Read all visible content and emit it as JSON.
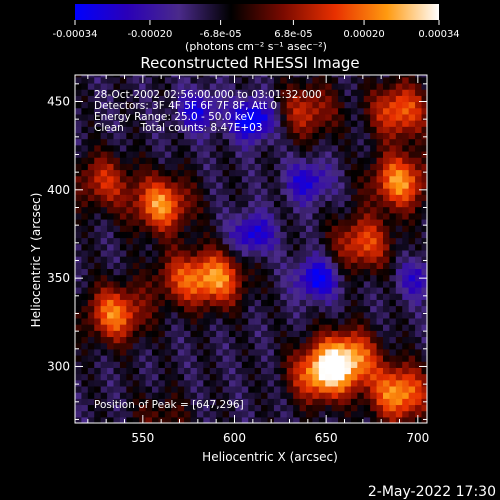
{
  "chart_data": {
    "type": "heatmap",
    "title": "Reconstructed RHESSI Image",
    "xlabel": "Heliocentric X (arcsec)",
    "ylabel": "Heliocentric Y (arcsec)",
    "xlim": [
      513,
      705
    ],
    "ylim": [
      268,
      465
    ],
    "xticks": [
      550,
      600,
      650,
      700
    ],
    "yticks": [
      300,
      350,
      400,
      450
    ],
    "grid": false,
    "colorbar": {
      "range": [
        -0.00034,
        0.00034
      ],
      "tick_values": [
        -0.00034,
        -0.0002,
        -6.8e-05,
        6.8e-05,
        0.0002,
        0.00034
      ],
      "tick_labels": [
        "-0.00034",
        "-0.00020",
        "-6.8e-05",
        "6.8e-05",
        "0.00020",
        "0.00034"
      ],
      "units": "(photons cm⁻² s⁻¹ asec⁻²)",
      "colormap": [
        "#0000ff",
        "#2a00b8",
        "#4a2a8a",
        "#000000",
        "#7a0a00",
        "#e83000",
        "#ff9a10",
        "#ffffff"
      ]
    },
    "info_lines": [
      "28-Oct-2002 02:56:00.000 to 03:01:32.000",
      "Detectors: 3F 4F 5F 6F 7F 8F, Att 0",
      "Energy Range: 25.0 - 50.0 keV",
      "Clean     Total counts: 8.47E+03"
    ],
    "peak_text": "Position of Peak = [647,296]",
    "peak_position": [
      647,
      296
    ],
    "hotspots": [
      {
        "x": 560,
        "y": 392,
        "peak": 0.00032
      },
      {
        "x": 590,
        "y": 350,
        "peak": 0.0003
      },
      {
        "x": 570,
        "y": 350,
        "peak": 0.00018
      },
      {
        "x": 535,
        "y": 330,
        "peak": 0.0003
      },
      {
        "x": 528,
        "y": 405,
        "peak": 0.0002
      },
      {
        "x": 690,
        "y": 405,
        "peak": 0.00032
      },
      {
        "x": 690,
        "y": 445,
        "peak": 0.00028
      },
      {
        "x": 670,
        "y": 370,
        "peak": 0.00025
      },
      {
        "x": 662,
        "y": 305,
        "peak": 0.00034
      },
      {
        "x": 690,
        "y": 285,
        "peak": 0.00034
      },
      {
        "x": 647,
        "y": 296,
        "peak": 0.00034
      },
      {
        "x": 640,
        "y": 445,
        "peak": 0.0002
      },
      {
        "x": 560,
        "y": 270,
        "peak": 0.0001
      }
    ],
    "darkspots": [
      {
        "x": 610,
        "y": 440,
        "peak": -0.0003
      },
      {
        "x": 610,
        "y": 375,
        "peak": -0.00022
      },
      {
        "x": 645,
        "y": 350,
        "peak": -0.00025
      },
      {
        "x": 640,
        "y": 405,
        "peak": -0.0002
      },
      {
        "x": 580,
        "y": 445,
        "peak": -0.0002
      },
      {
        "x": 700,
        "y": 350,
        "peak": -0.00015
      }
    ]
  },
  "footer": {
    "timestamp": "2-May-2022 17:30"
  }
}
